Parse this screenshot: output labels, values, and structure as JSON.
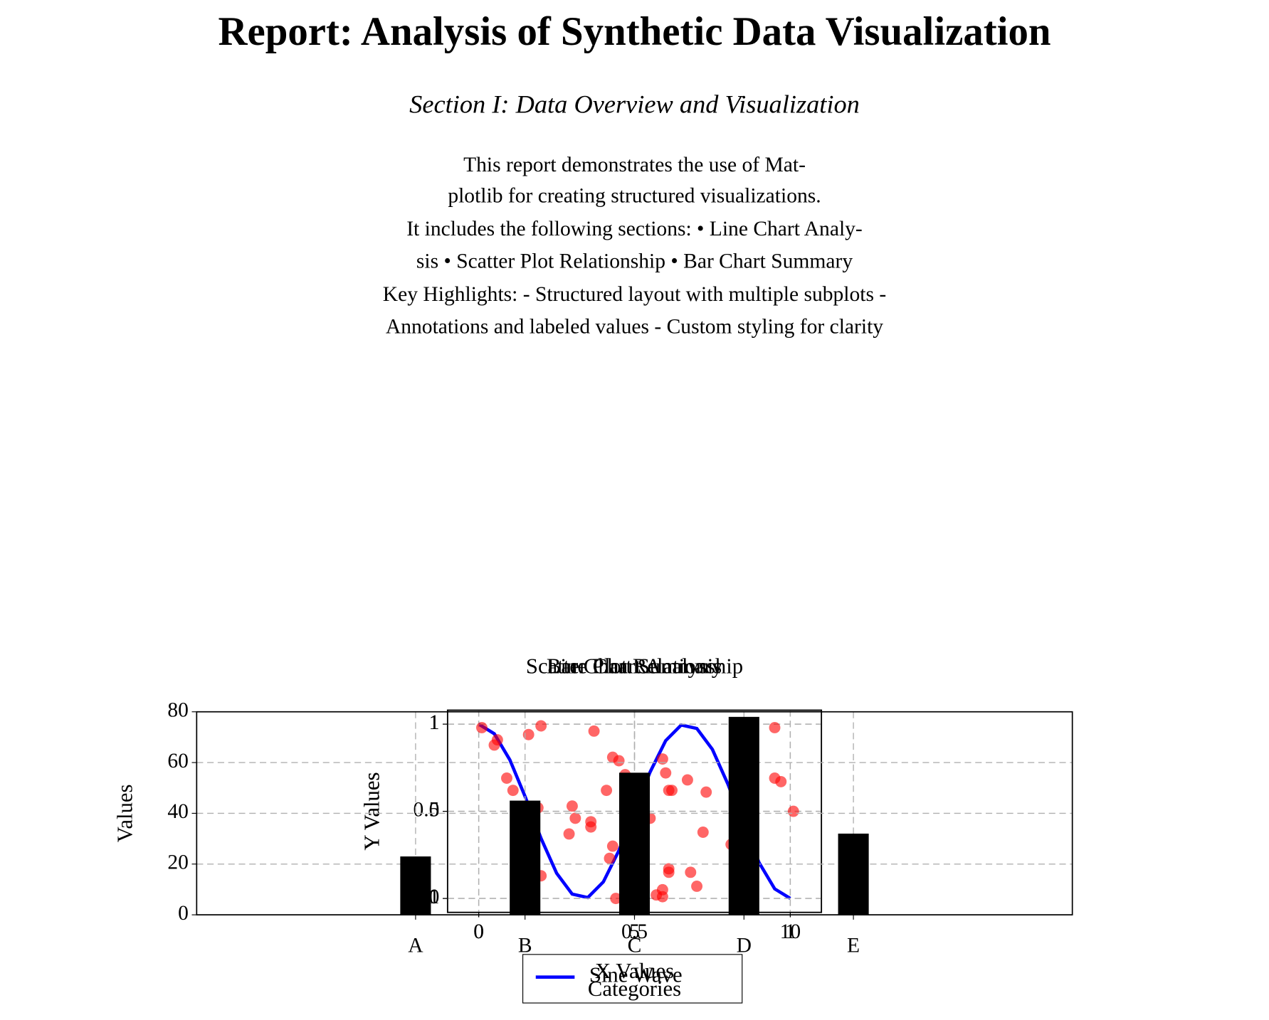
{
  "header": {
    "title": "Report: Analysis of Synthetic Data Visualization",
    "subtitle": "Section I: Data Overview and Visualization"
  },
  "intro": {
    "lines": [
      "This report demonstrates the use of Mat-",
      "plotlib for creating structured visualizations.",
      "It includes the following sections: • Line Chart Analy-",
      "sis • Scatter Plot Relationship • Bar Chart Summary",
      "Key Highlights: - Structured layout with multiple subplots -",
      "Annotations and labeled values - Custom styling for clarity"
    ]
  },
  "chart_data": [
    {
      "type": "line",
      "title": "Line Chart Analysis",
      "xlabel": "X Values",
      "ylabel": "Y Values",
      "x": [
        0,
        0.5,
        1,
        1.5,
        2,
        2.5,
        3,
        3.5,
        4,
        4.5,
        5,
        5.5,
        6,
        6.5,
        7,
        7.5,
        8,
        8.5,
        9,
        9.5,
        10
      ],
      "series": [
        {
          "name": "Sine Wave",
          "color": "#0000ff",
          "values": [
            1.0,
            0.89,
            0.59,
            0.16,
            -0.31,
            -0.71,
            -0.95,
            -0.99,
            -0.81,
            -0.45,
            0.0,
            0.45,
            0.81,
            0.99,
            0.95,
            0.71,
            0.31,
            -0.16,
            -0.59,
            -0.89,
            -1.0
          ]
        }
      ],
      "xlim": [
        -1,
        11
      ],
      "xticks": [
        0,
        5,
        10
      ],
      "ylim": [
        -1.16,
        1.16
      ],
      "yticks": [
        -1,
        0,
        1
      ],
      "grid": true,
      "legend": "lower center"
    },
    {
      "type": "scatter",
      "title": "Scatter Plot Relationship",
      "xlabel": "X Values",
      "ylabel": "Y Values",
      "color": "#ff0000",
      "x": [
        0.01,
        0.05,
        0.06,
        0.09,
        0.11,
        0.16,
        0.19,
        0.2,
        0.2,
        0.29,
        0.3,
        0.31,
        0.36,
        0.36,
        0.37,
        0.41,
        0.42,
        0.43,
        0.43,
        0.44,
        0.45,
        0.47,
        0.55,
        0.57,
        0.59,
        0.59,
        0.59,
        0.6,
        0.61,
        0.61,
        0.61,
        0.62,
        0.67,
        0.68,
        0.7,
        0.72,
        0.73,
        0.81,
        0.95,
        0.95,
        0.97,
        1.01
      ],
      "y": [
        0.98,
        0.88,
        0.91,
        0.69,
        0.62,
        0.94,
        0.52,
        0.99,
        0.13,
        0.37,
        0.53,
        0.46,
        0.44,
        0.41,
        0.96,
        0.62,
        0.23,
        0.3,
        0.81,
        0.0,
        0.79,
        0.71,
        0.46,
        0.02,
        0.01,
        0.8,
        0.05,
        0.72,
        0.17,
        0.15,
        0.62,
        0.62,
        0.68,
        0.15,
        0.07,
        0.38,
        0.61,
        0.31,
        0.98,
        0.69,
        0.67,
        0.5
      ],
      "xlim": [
        -0.1,
        1.1
      ],
      "xticks": [
        0,
        0.5,
        1
      ],
      "ylim": [
        -0.08,
        1.08
      ],
      "yticks": [
        0,
        0.5,
        1
      ],
      "grid": true
    },
    {
      "type": "bar",
      "title": "Bar Chart Summary",
      "xlabel": "Categories",
      "ylabel": "Values",
      "categories": [
        "A",
        "B",
        "C",
        "D",
        "E"
      ],
      "values": [
        23,
        45,
        56,
        78,
        32
      ],
      "color": "#000000",
      "ylim": [
        0,
        80
      ],
      "yticks": [
        0,
        20,
        40,
        60,
        80
      ],
      "grid": true
    }
  ]
}
